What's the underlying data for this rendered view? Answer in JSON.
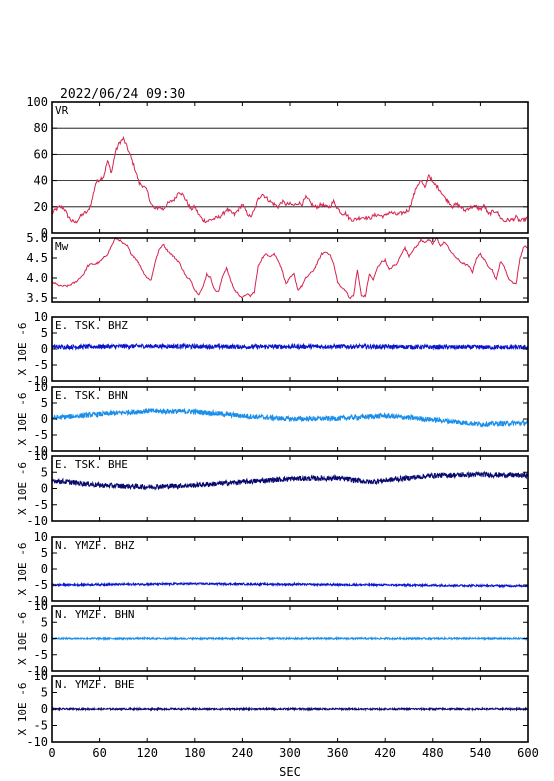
{
  "title": "2022/06/24 09:30",
  "colors": {
    "vr": "#d6244e",
    "mw": "#d6244e",
    "bhz": "#0a16cc",
    "bhn": "#1a8ee8",
    "bhe": "#0a0a6e",
    "frame": "#000000"
  },
  "chart_data": [
    {
      "type": "line",
      "name": "VR",
      "label": "VR",
      "ylim": [
        0,
        100
      ],
      "yticks": [
        0,
        20,
        40,
        60,
        80,
        100
      ],
      "grid": true,
      "x": [
        0,
        5,
        10,
        15,
        20,
        25,
        30,
        35,
        40,
        45,
        50,
        55,
        60,
        65,
        70,
        75,
        80,
        85,
        90,
        95,
        100,
        105,
        110,
        115,
        120,
        125,
        130,
        135,
        140,
        145,
        150,
        155,
        160,
        165,
        170,
        175,
        180,
        185,
        190,
        195,
        200,
        205,
        210,
        215,
        220,
        225,
        230,
        235,
        240,
        245,
        250,
        255,
        260,
        265,
        270,
        275,
        280,
        285,
        290,
        295,
        300,
        305,
        310,
        315,
        320,
        325,
        330,
        335,
        340,
        345,
        350,
        355,
        360,
        365,
        370,
        375,
        380,
        385,
        390,
        395,
        400,
        405,
        410,
        415,
        420,
        425,
        430,
        435,
        440,
        445,
        450,
        455,
        460,
        465,
        470,
        475,
        480,
        485,
        490,
        495,
        500,
        505,
        510,
        515,
        520,
        525,
        530,
        535,
        540,
        545,
        550,
        555,
        560,
        565,
        570,
        575,
        580,
        585,
        590,
        595,
        600
      ],
      "values": [
        15,
        18,
        20,
        19,
        13,
        9,
        8,
        12,
        15,
        16,
        24,
        38,
        41,
        43,
        55,
        46,
        62,
        69,
        72,
        65,
        57,
        48,
        38,
        36,
        32,
        22,
        18,
        20,
        18,
        22,
        24,
        26,
        32,
        29,
        24,
        18,
        20,
        14,
        10,
        9,
        10,
        11,
        12,
        14,
        18,
        16,
        14,
        18,
        22,
        16,
        12,
        17,
        26,
        30,
        27,
        24,
        22,
        20,
        24,
        22,
        22,
        21,
        23,
        22,
        27,
        24,
        20,
        20,
        22,
        20,
        20,
        24,
        19,
        15,
        15,
        11,
        10,
        11,
        12,
        12,
        11,
        13,
        14,
        13,
        13,
        16,
        15,
        14,
        15,
        16,
        18,
        27,
        36,
        40,
        34,
        45,
        38,
        36,
        32,
        27,
        24,
        20,
        22,
        20,
        17,
        19,
        20,
        20,
        18,
        21,
        14,
        16,
        17,
        12,
        9,
        10,
        10,
        12,
        9,
        10,
        12
      ]
    },
    {
      "type": "line",
      "name": "Mw",
      "label": "Mw",
      "ylim": [
        3.4,
        5.0
      ],
      "yticks": [
        3.5,
        4.0,
        4.5,
        5.0
      ],
      "ytick_labels": [
        "3.5",
        "4.0",
        "4.5",
        "5.0"
      ],
      "grid": false,
      "x": [
        0,
        5,
        10,
        15,
        20,
        25,
        30,
        35,
        40,
        45,
        50,
        55,
        60,
        65,
        70,
        75,
        80,
        85,
        90,
        95,
        100,
        105,
        110,
        115,
        120,
        125,
        130,
        135,
        140,
        145,
        150,
        155,
        160,
        165,
        170,
        175,
        180,
        185,
        190,
        195,
        200,
        205,
        210,
        215,
        220,
        225,
        230,
        235,
        240,
        245,
        250,
        255,
        260,
        265,
        270,
        275,
        280,
        285,
        290,
        295,
        300,
        305,
        310,
        315,
        320,
        325,
        330,
        335,
        340,
        345,
        350,
        355,
        360,
        365,
        370,
        375,
        380,
        385,
        390,
        395,
        400,
        405,
        410,
        415,
        420,
        425,
        430,
        435,
        440,
        445,
        450,
        455,
        460,
        465,
        470,
        475,
        480,
        485,
        490,
        495,
        500,
        505,
        510,
        515,
        520,
        525,
        530,
        535,
        540,
        545,
        550,
        555,
        560,
        565,
        570,
        575,
        580,
        585,
        590,
        595,
        600
      ],
      "values": [
        3.9,
        3.85,
        3.8,
        3.8,
        3.8,
        3.85,
        3.9,
        4.0,
        4.1,
        4.3,
        4.35,
        4.35,
        4.4,
        4.5,
        4.6,
        4.8,
        5.0,
        4.95,
        4.85,
        4.8,
        4.6,
        4.5,
        4.35,
        4.15,
        4.0,
        3.95,
        4.4,
        4.7,
        4.85,
        4.7,
        4.6,
        4.5,
        4.4,
        4.2,
        4.0,
        3.95,
        3.7,
        3.6,
        3.75,
        4.1,
        4.0,
        3.7,
        3.65,
        4.05,
        4.25,
        3.95,
        3.7,
        3.6,
        3.5,
        3.6,
        3.55,
        3.65,
        4.3,
        4.5,
        4.6,
        4.55,
        4.6,
        4.45,
        4.2,
        3.85,
        4.0,
        4.1,
        3.7,
        3.8,
        4.0,
        4.1,
        4.2,
        4.4,
        4.6,
        4.65,
        4.6,
        4.35,
        3.9,
        3.75,
        3.7,
        3.5,
        3.55,
        4.2,
        3.55,
        3.55,
        4.1,
        3.95,
        4.25,
        4.4,
        4.45,
        4.2,
        4.3,
        4.35,
        4.6,
        4.75,
        4.55,
        4.7,
        4.8,
        4.95,
        4.9,
        4.95,
        4.85,
        5.0,
        4.8,
        4.9,
        4.75,
        4.6,
        4.5,
        4.4,
        4.35,
        4.3,
        4.15,
        4.5,
        4.6,
        4.45,
        4.3,
        4.2,
        3.95,
        4.4,
        4.3,
        4.0,
        3.9,
        3.85,
        4.5,
        4.8,
        4.75
      ]
    },
    {
      "type": "line",
      "name": "E.TSK.BHZ",
      "label": "E. TSK. BHZ",
      "ylabel": "X 10E -6",
      "ylim": [
        -10,
        10
      ],
      "yticks": [
        -10,
        -5,
        0,
        5,
        10
      ],
      "baseline_x": [
        0,
        120,
        240,
        360,
        480,
        600
      ],
      "baseline": [
        0.6,
        0.9,
        0.7,
        0.8,
        0.6,
        0.5
      ],
      "noise_amplitude": 0.7
    },
    {
      "type": "line",
      "name": "E.TSK.BHN",
      "label": "E. TSK. BHN",
      "ylabel": "X 10E -6",
      "ylim": [
        -10,
        10
      ],
      "yticks": [
        -10,
        -5,
        0,
        5,
        10
      ],
      "baseline_x": [
        0,
        60,
        120,
        180,
        240,
        300,
        360,
        420,
        480,
        540,
        600
      ],
      "baseline": [
        0.3,
        1.5,
        2.5,
        2.3,
        1.0,
        0.0,
        0.2,
        1.0,
        -0.2,
        -1.6,
        -1.2
      ],
      "noise_amplitude": 0.8
    },
    {
      "type": "line",
      "name": "E.TSK.BHE",
      "label": "E. TSK. BHE",
      "ylabel": "X 10E -6",
      "ylim": [
        -10,
        10
      ],
      "yticks": [
        -10,
        -5,
        0,
        5,
        10
      ],
      "baseline_x": [
        0,
        60,
        120,
        180,
        240,
        300,
        360,
        400,
        420,
        480,
        540,
        600
      ],
      "baseline": [
        2.5,
        1.0,
        0.5,
        1.0,
        2.0,
        3.0,
        3.2,
        2.0,
        2.5,
        4.0,
        4.3,
        4.0
      ],
      "noise_amplitude": 0.8
    },
    {
      "type": "line",
      "name": "N.YMZF.BHZ",
      "label": "N. YMZF. BHZ",
      "ylabel": "X 10E -6",
      "ylim": [
        -10,
        10
      ],
      "yticks": [
        -10,
        -5,
        0,
        5,
        10
      ],
      "baseline_x": [
        0,
        180,
        360,
        600
      ],
      "baseline": [
        -5.0,
        -4.6,
        -4.9,
        -5.3
      ],
      "noise_amplitude": 0.3
    },
    {
      "type": "line",
      "name": "N.YMZF.BHN",
      "label": "N. YMZF. BHN",
      "ylabel": "X 10E -6",
      "ylim": [
        -10,
        10
      ],
      "yticks": [
        -10,
        -5,
        0,
        5,
        10
      ],
      "baseline_x": [
        0,
        600
      ],
      "baseline": [
        0.0,
        0.0
      ],
      "noise_amplitude": 0.25
    },
    {
      "type": "line",
      "name": "N.YMZF.BHE",
      "label": "N. YMZF. BHE",
      "ylabel": "X 10E -6",
      "ylim": [
        -10,
        10
      ],
      "yticks": [
        -10,
        -5,
        0,
        5,
        10
      ],
      "baseline_x": [
        0,
        600
      ],
      "baseline": [
        0.0,
        0.0
      ],
      "noise_amplitude": 0.25
    }
  ],
  "xaxis": {
    "label": "SEC",
    "xlim": [
      0,
      600
    ],
    "ticks": [
      0,
      60,
      120,
      180,
      240,
      300,
      360,
      420,
      480,
      540,
      600
    ]
  }
}
